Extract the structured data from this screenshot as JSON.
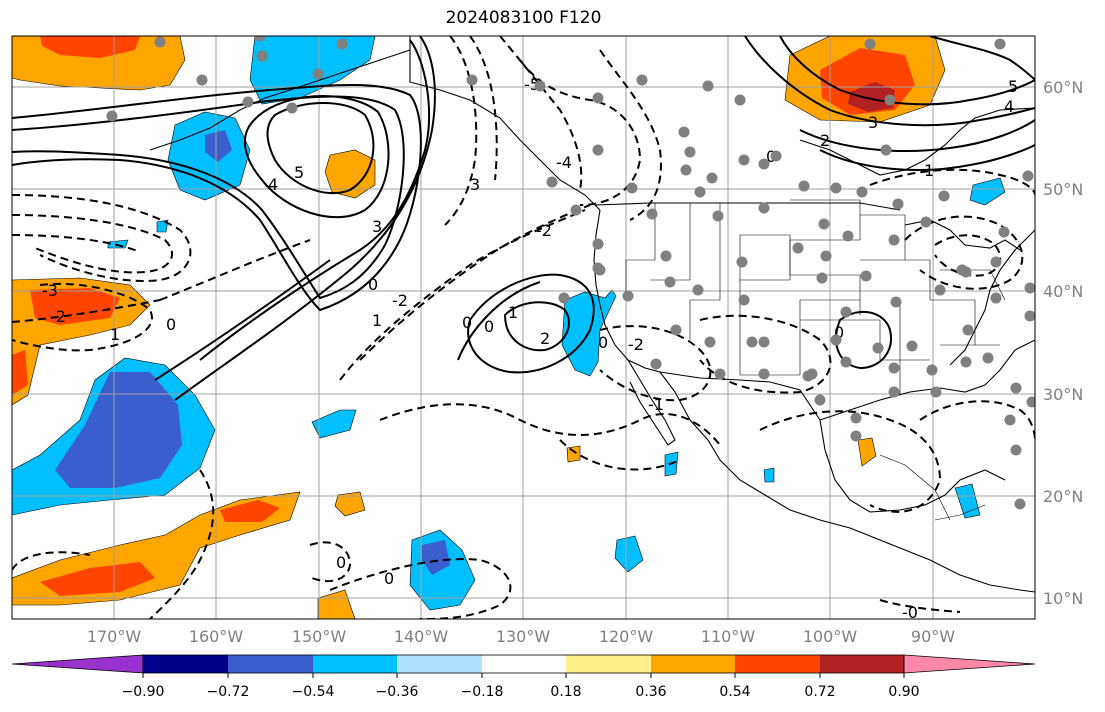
{
  "title": "2024083100 F120",
  "map": {
    "lon_ticks": [
      "170°W",
      "160°W",
      "150°W",
      "140°W",
      "130°W",
      "120°W",
      "110°W",
      "100°W",
      "90°W"
    ],
    "lat_ticks": [
      "60°N",
      "50°N",
      "40°N",
      "30°N",
      "20°N",
      "10°N"
    ],
    "contour_labels": [
      "5",
      "4",
      "3",
      "2",
      "1",
      "0",
      "-1",
      "-2",
      "-3",
      "-4",
      "-5",
      "-0"
    ],
    "colors": {
      "fill_pos_weak": "#ffa500",
      "fill_pos_mid": "#ff4500",
      "fill_pos_strong": "#b22222",
      "fill_neg_weak": "#00bfff",
      "fill_neg_strong": "#3a5fcd",
      "station": "#808080"
    }
  },
  "colorbar": {
    "colors": [
      "#9932cc",
      "#00008b",
      "#3a5fcd",
      "#00bfff",
      "#b0e2ff",
      "#ffffff",
      "#fff08c",
      "#ffa500",
      "#ff4500",
      "#b22222",
      "#ff88aa"
    ],
    "tick_labels": [
      "−0.90",
      "−0.72",
      "−0.54",
      "−0.36",
      "−0.18",
      "0.18",
      "0.36",
      "0.54",
      "0.72",
      "0.90"
    ]
  }
}
